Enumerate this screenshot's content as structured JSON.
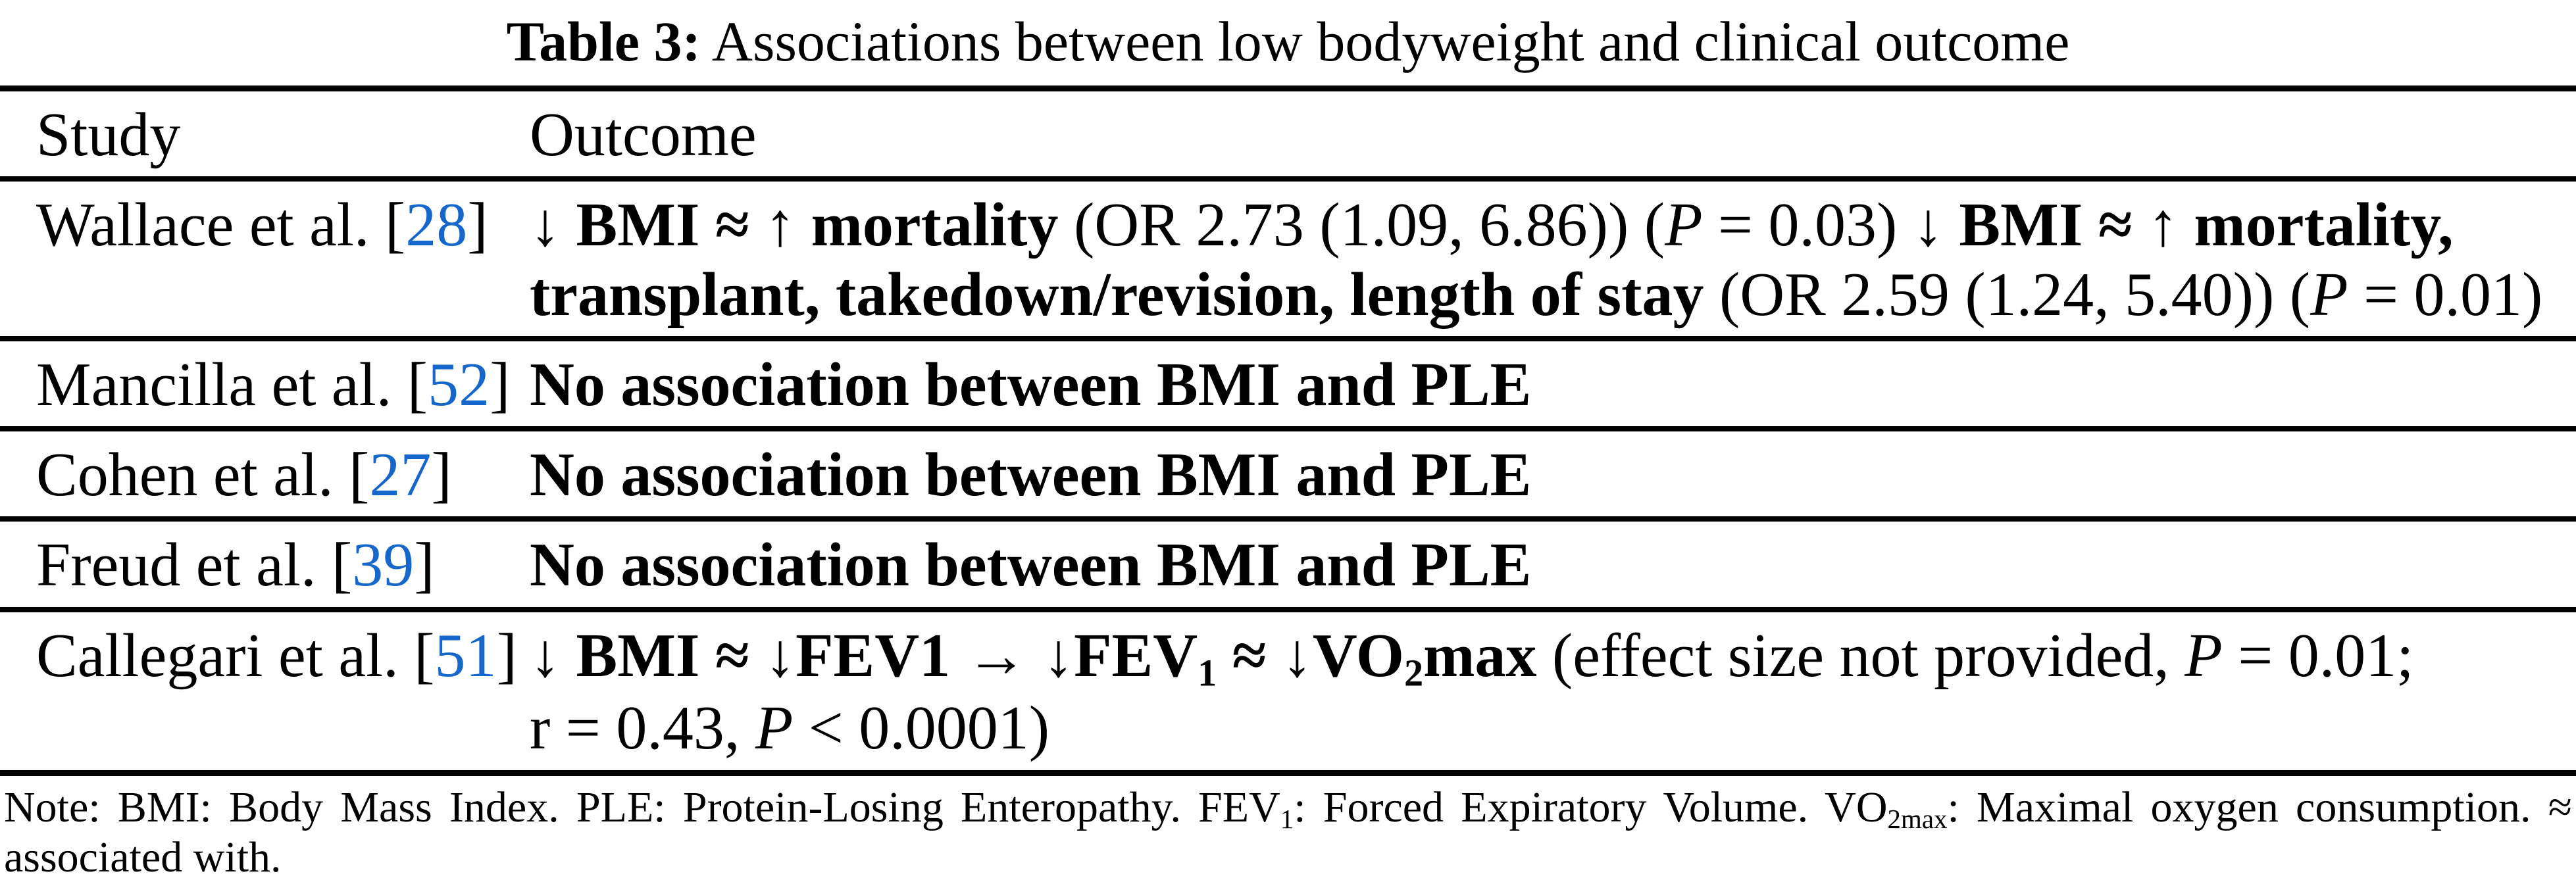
{
  "colors": {
    "link_blue": "#1567CB",
    "text": "#000000",
    "background": "#ffffff"
  },
  "title": [
    {
      "t": "Table 3:",
      "b": true
    },
    {
      "t": "  Associations between low bodyweight and clinical outcome"
    }
  ],
  "header": {
    "study": "Study",
    "outcome": "Outcome"
  },
  "rows": [
    {
      "study": [
        {
          "t": "Wallace et al. ["
        },
        {
          "t": "28",
          "link": true
        },
        {
          "t": "]"
        }
      ],
      "outcome": [
        [
          {
            "t": "↓ "
          },
          {
            "t": "BMI ≈",
            "b": true
          },
          {
            "t": " ↑ "
          },
          {
            "t": "mortality",
            "b": true
          },
          {
            "t": " (OR 2.73 (1.09, 6.86)) ("
          },
          {
            "t": "P",
            "i": true
          },
          {
            "t": " = 0.03) ↓ "
          },
          {
            "t": "BMI ≈",
            "b": true
          },
          {
            "t": " ↑ "
          },
          {
            "t": "mortality,",
            "b": true
          }
        ],
        [
          {
            "t": "transplant, takedown/revision, length of stay",
            "b": true
          },
          {
            "t": " (OR 2.59 (1.24, 5.40)) ("
          },
          {
            "t": "P",
            "i": true
          },
          {
            "t": " = 0.01)"
          }
        ]
      ]
    },
    {
      "study": [
        {
          "t": "Mancilla et al. ["
        },
        {
          "t": "52",
          "link": true
        },
        {
          "t": "]"
        }
      ],
      "outcome": [
        [
          {
            "t": "No association between BMI and PLE",
            "b": true
          }
        ]
      ]
    },
    {
      "study": [
        {
          "t": "Cohen et al. ["
        },
        {
          "t": "27",
          "link": true
        },
        {
          "t": "]"
        }
      ],
      "outcome": [
        [
          {
            "t": "No association between BMI and PLE",
            "b": true
          }
        ]
      ]
    },
    {
      "study": [
        {
          "t": "Freud et al. ["
        },
        {
          "t": "39",
          "link": true
        },
        {
          "t": "]"
        }
      ],
      "outcome": [
        [
          {
            "t": "No association between BMI and PLE",
            "b": true
          }
        ]
      ]
    },
    {
      "study": [
        {
          "t": "Callegari et al. ["
        },
        {
          "t": "51",
          "link": true
        },
        {
          "t": "]"
        }
      ],
      "outcome": [
        [
          {
            "t": "↓ "
          },
          {
            "t": "BMI ≈ ↓FEV1 → ↓FEV",
            "b": true
          },
          {
            "t": "1",
            "b": true,
            "sub": true
          },
          {
            "t": " ≈ ↓VO",
            "b": true
          },
          {
            "t": "2",
            "b": true,
            "sub": true
          },
          {
            "t": "max",
            "b": true
          },
          {
            "t": " (effect size not provided, "
          },
          {
            "t": "P",
            "i": true
          },
          {
            "t": " = 0.01;"
          }
        ],
        [
          {
            "t": "r = 0.43, "
          },
          {
            "t": "P",
            "i": true
          },
          {
            "t": " < 0.0001)"
          }
        ]
      ]
    }
  ],
  "note": [
    {
      "t": "Note: BMI: Body Mass Index. PLE: Protein-Losing Enteropathy. FEV"
    },
    {
      "t": "1",
      "sub": true
    },
    {
      "t": ": Forced Expiratory Volume. VO"
    },
    {
      "t": "2max",
      "sub": true
    },
    {
      "t": ": Maximal oxygen consumption. ≈ associated with."
    }
  ]
}
